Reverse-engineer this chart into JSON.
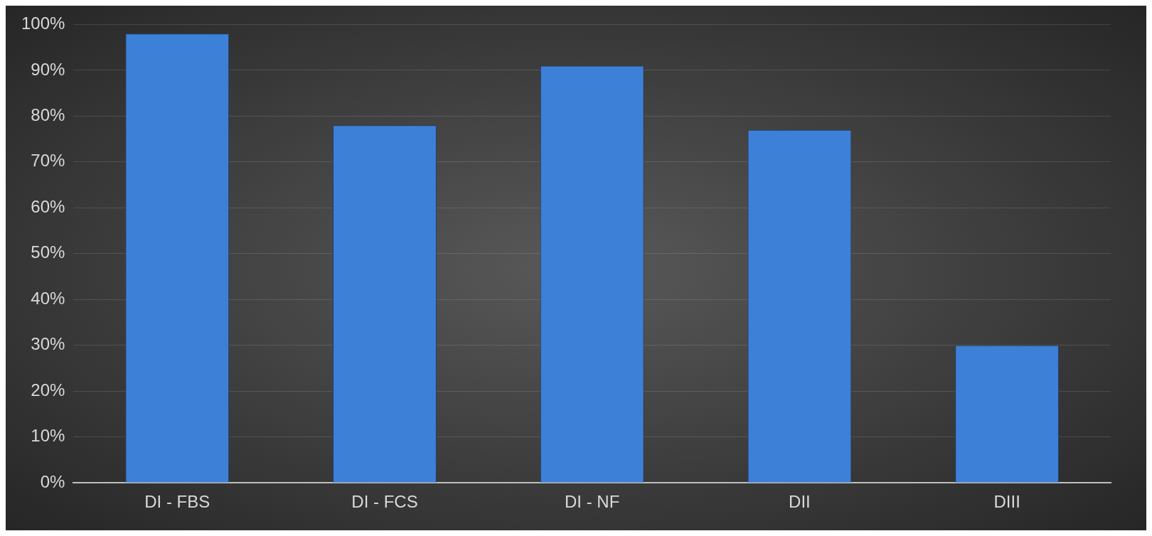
{
  "chart_data": {
    "type": "bar",
    "categories": [
      "DI - FBS",
      "DI - FCS",
      "DI - NF",
      "DII",
      "DIII"
    ],
    "values": [
      98,
      78,
      91,
      77,
      30
    ],
    "color": "#3d80d8",
    "ylim": [
      0,
      100
    ],
    "yticks": [
      {
        "value": 0,
        "label": "0%"
      },
      {
        "value": 10,
        "label": "10%"
      },
      {
        "value": 20,
        "label": "20%"
      },
      {
        "value": 30,
        "label": "30%"
      },
      {
        "value": 40,
        "label": "40%"
      },
      {
        "value": 50,
        "label": "50%"
      },
      {
        "value": 60,
        "label": "60%"
      },
      {
        "value": 70,
        "label": "70%"
      },
      {
        "value": 80,
        "label": "80%"
      },
      {
        "value": 90,
        "label": "90%"
      },
      {
        "value": 100,
        "label": "100%"
      }
    ],
    "grid": "y"
  }
}
